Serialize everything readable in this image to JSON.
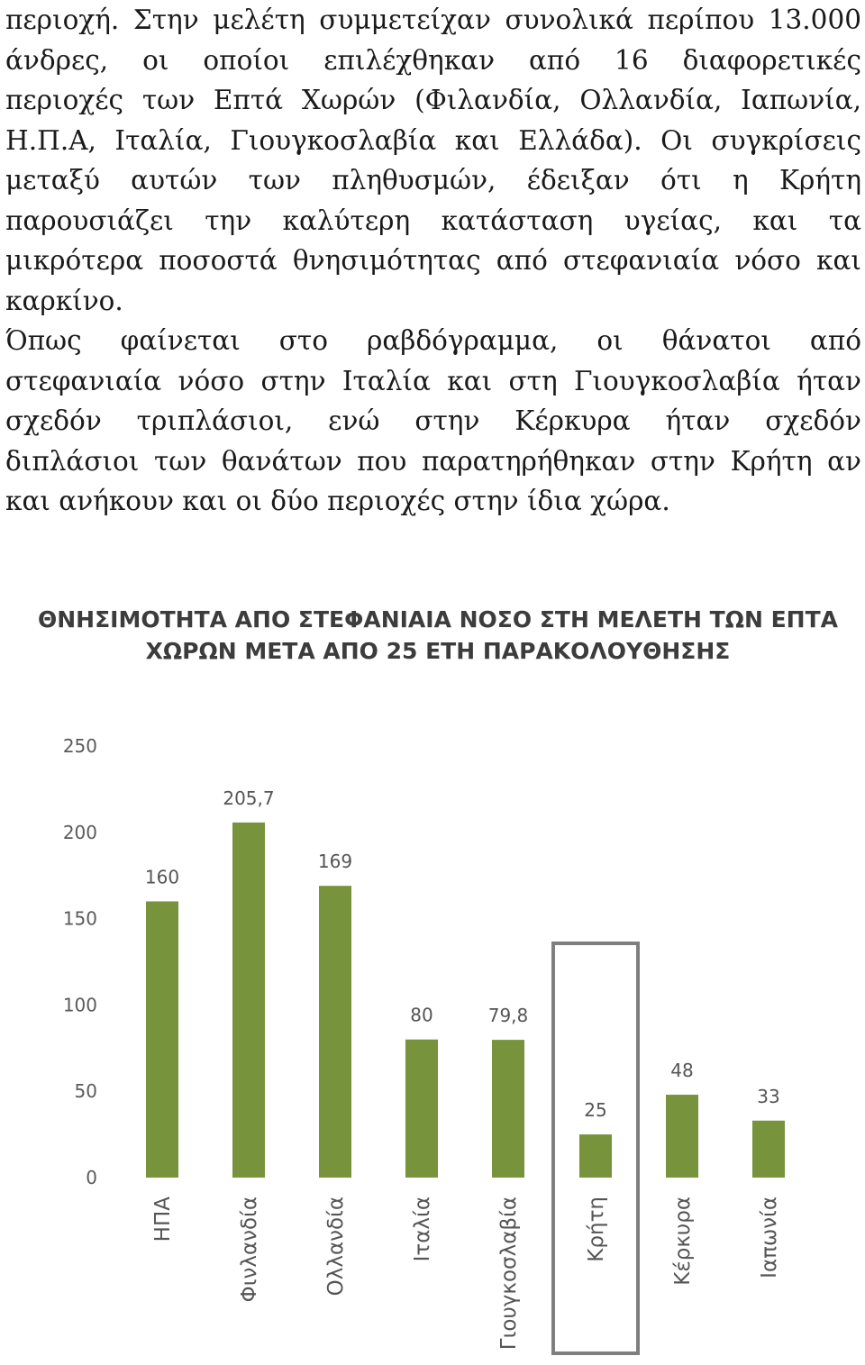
{
  "paragraph1": {
    "lines": [
      "περιοχή. Στην μελέτη συμμετείχαν συνολικά περίπου 13.000",
      "άνδρες, οι οποίοι επιλέχθηκαν από 16 διαφορετικές",
      "περιοχές των Επτά Χωρών (Φιλανδία, Ολλανδία, Ιαπωνία,",
      "Η.Π.Α, Ιταλία, Γιουγκοσλαβία και Ελλάδα). Οι συγκρίσεις",
      "μεταξύ αυτών των πληθυσμών, έδειξαν ότι η Κρήτη",
      "παρουσιάζει την καλύτερη κατάσταση υγείας, και τα",
      "μικρότερα ποσοστά θνησιμότητας από στεφανιαία νόσο και",
      "καρκίνο."
    ]
  },
  "paragraph2": {
    "lines": [
      "Όπως φαίνεται στο ραβδόγραμμα, οι θάνατοι από",
      "στεφανιαία νόσο στην Ιταλία και στη Γιουγκοσλαβία ήταν",
      "σχεδόν τριπλάσιοι, ενώ στην Κέρκυρα ήταν σχεδόν",
      "διπλάσιοι των θανάτων που παρατηρήθηκαν στην Κρήτη αν",
      "και ανήκουν και οι δύο περιοχές στην ίδια χώρα."
    ]
  },
  "chart_data": {
    "type": "bar",
    "title_lines": [
      "ΘΝΗΣΙΜΟΤΗΤΑ ΑΠΟ ΣΤΕΦΑΝΙΑΙΑ ΝΟΣΟ ΣΤΗ ΜΕΛΕΤΗ ΤΩΝ ΕΠΤΑ",
      "ΧΩΡΩΝ ΜΕΤΑ ΑΠΟ 25 ΕΤΗ ΠΑΡΑΚΟΛΟΥΘΗΣΗΣ"
    ],
    "categories": [
      "ΗΠΑ",
      "Φινλανδία",
      "Ολλανδία",
      "Ιταλία",
      "Γιουγκοσλαβία",
      "Κρήτη",
      "Κέρκυρα",
      "Ιαπωνία"
    ],
    "values": [
      160,
      205.7,
      169,
      80,
      79.8,
      25,
      48,
      33
    ],
    "value_labels": [
      "160",
      "205,7",
      "169",
      "80",
      "79,8",
      "25",
      "48",
      "33"
    ],
    "yticks": [
      0,
      50,
      100,
      150,
      200,
      250
    ],
    "ylim": [
      0,
      250
    ],
    "grid": false,
    "highlighted_category": "Κρήτη",
    "bar_color": "#77933c",
    "highlight_box_color": "#7f7f7f"
  }
}
